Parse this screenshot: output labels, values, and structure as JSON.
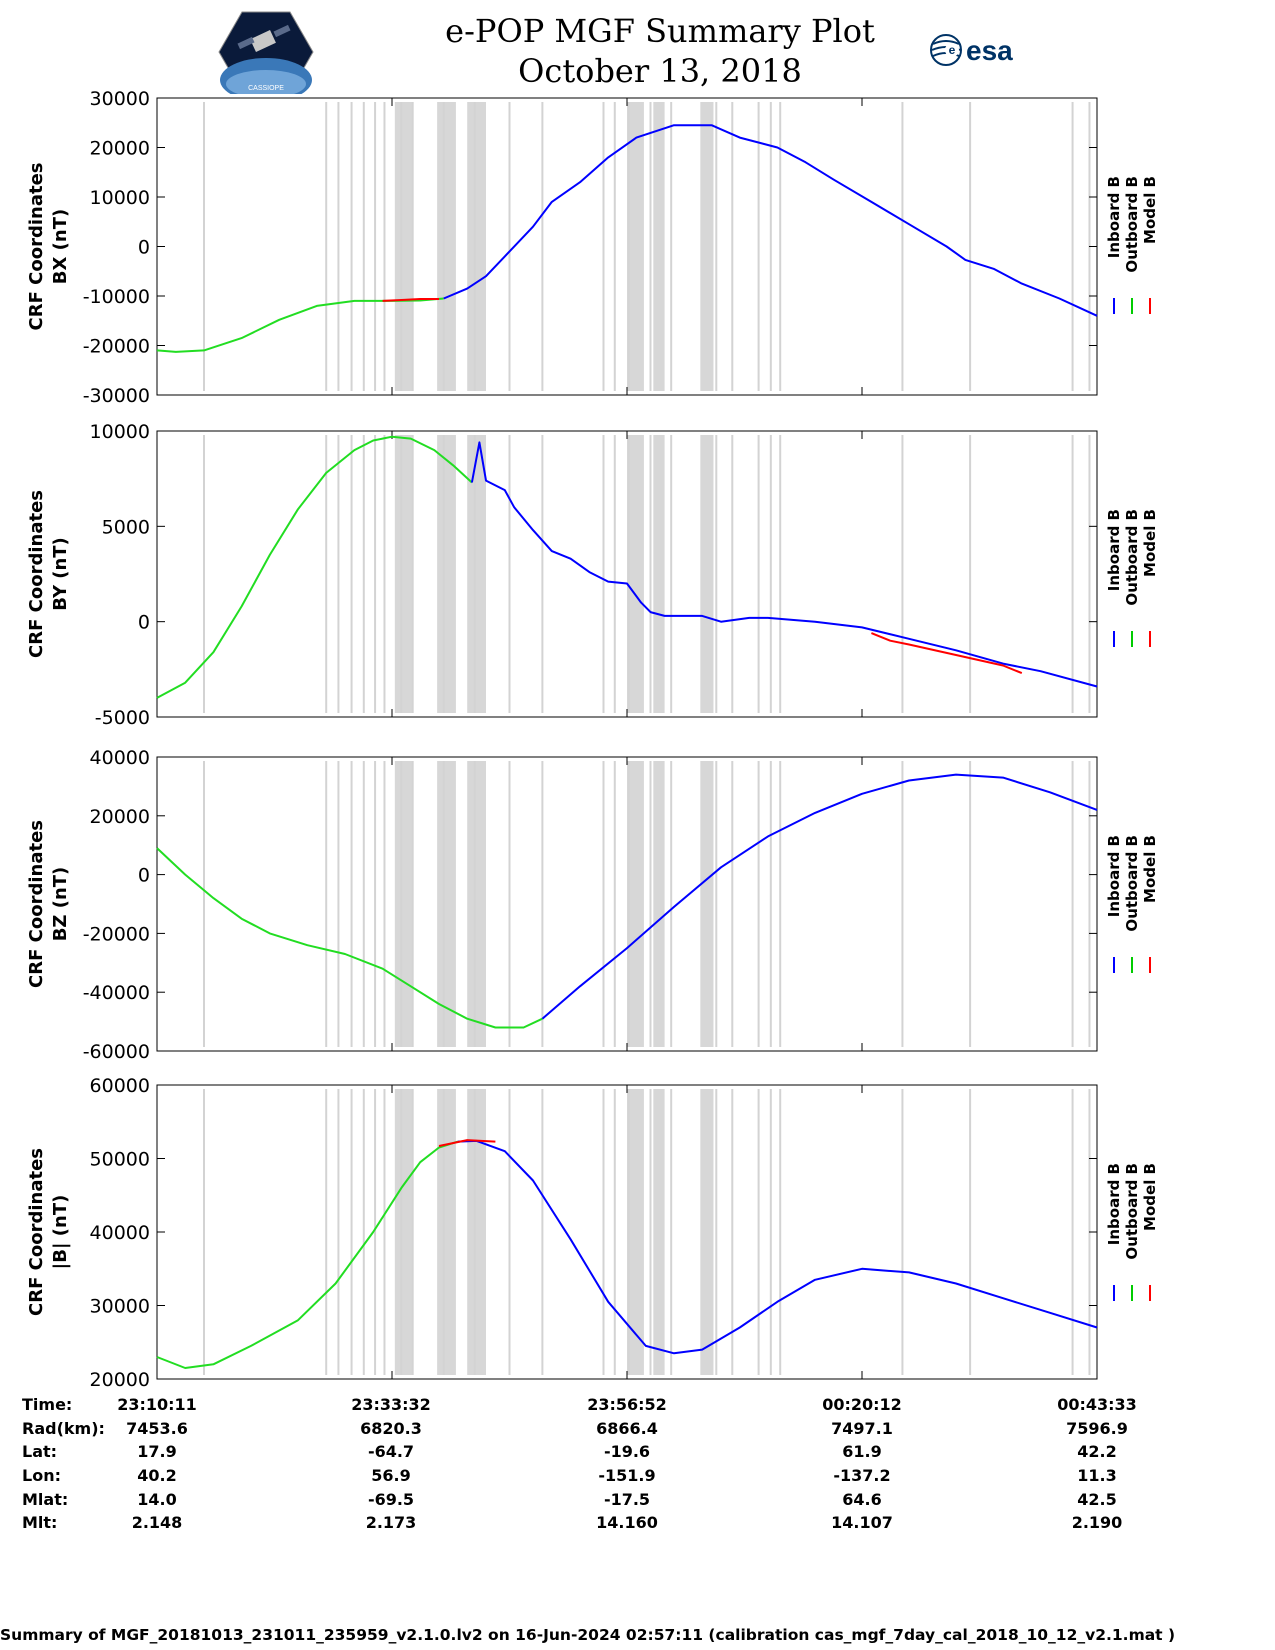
{
  "header": {
    "title": "e-POP MGF Summary Plot",
    "date": "October 13, 2018",
    "cassiope_logo_text": "CASSIOPE",
    "esa_logo_text": "esa"
  },
  "legend": {
    "labels": [
      "Inboard B",
      "Outboard B",
      "Model B"
    ],
    "colors": [
      "#0000ff",
      "#00cc00",
      "#ff0000"
    ]
  },
  "colors": {
    "inboard": "#0000ff",
    "outboard": "#22dd22",
    "model": "#ff0000",
    "gap": "#d3d3d3"
  },
  "chart_data": [
    {
      "type": "line",
      "ylabel": [
        "CRF Coordinates",
        "BX (nT)"
      ],
      "ylim": [
        -30000,
        30000
      ],
      "yticks": [
        30000,
        20000,
        10000,
        0,
        -10000,
        -20000,
        -30000
      ],
      "xlim": [
        0,
        100
      ],
      "outboard": {
        "x": [
          0,
          2,
          5,
          9,
          13,
          17,
          21,
          25,
          28,
          30.5
        ],
        "y": [
          -21000,
          -21300,
          -21000,
          -18500,
          -14800,
          -12000,
          -11000,
          -11000,
          -10900,
          -10500
        ]
      },
      "inboard": {
        "x": [
          30.5,
          33,
          35,
          37,
          40,
          42,
          45,
          48,
          51,
          55,
          59,
          62,
          66,
          69,
          72,
          76,
          80,
          84,
          86,
          89,
          92,
          96,
          100
        ],
        "y": [
          -10500,
          -8500,
          -6000,
          -2000,
          4000,
          9000,
          13000,
          18000,
          22000,
          24500,
          24500,
          22000,
          20000,
          17000,
          13500,
          9000,
          4500,
          0,
          -2700,
          -4500,
          -7500,
          -10500,
          -14000
        ]
      },
      "model": {
        "x": [
          24,
          26,
          28,
          30
        ],
        "y": [
          -11000,
          -10800,
          -10600,
          -10600
        ]
      }
    },
    {
      "type": "line",
      "ylabel": [
        "CRF Coordinates",
        "BY (nT)"
      ],
      "ylim": [
        -5000,
        10000
      ],
      "yticks": [
        10000,
        5000,
        0,
        -5000
      ],
      "xlim": [
        0,
        100
      ],
      "outboard": {
        "x": [
          0,
          3,
          6,
          9,
          12,
          15,
          18,
          21,
          23,
          25,
          27,
          29.5,
          31.5,
          33.5
        ],
        "y": [
          -4000,
          -3200,
          -1600,
          800,
          3500,
          5900,
          7800,
          9000,
          9500,
          9700,
          9600,
          9000,
          8200,
          7300
        ]
      },
      "inboard": {
        "x": [
          33.5,
          34.3,
          35,
          37,
          38,
          40,
          42,
          44,
          46,
          48,
          50,
          51.5,
          52.5,
          54,
          56,
          58,
          60,
          63,
          65,
          70,
          75,
          80,
          85,
          90,
          94,
          100
        ],
        "y": [
          7300,
          9400,
          7400,
          6900,
          6000,
          4800,
          3700,
          3300,
          2600,
          2100,
          2000,
          1000,
          500,
          300,
          300,
          300,
          0,
          200,
          200,
          0,
          -300,
          -900,
          -1500,
          -2200,
          -2600,
          -3400
        ]
      },
      "model": {
        "x": [
          76,
          78,
          80,
          90,
          92
        ],
        "y": [
          -600,
          -1000,
          -1200,
          -2300,
          -2700
        ]
      }
    },
    {
      "type": "line",
      "ylabel": [
        "CRF Coordinates",
        "BZ (nT)"
      ],
      "ylim": [
        -60000,
        40000
      ],
      "yticks": [
        40000,
        20000,
        0,
        -20000,
        -40000,
        -60000
      ],
      "xlim": [
        0,
        100
      ],
      "outboard": {
        "x": [
          0,
          3,
          6,
          9,
          12,
          16,
          20,
          24,
          27,
          30,
          33,
          36,
          39,
          41
        ],
        "y": [
          9000,
          0,
          -8000,
          -15000,
          -20000,
          -24000,
          -27000,
          -32000,
          -38000,
          -44000,
          -49000,
          -52000,
          -52000,
          -49000
        ]
      },
      "inboard": {
        "x": [
          41,
          45,
          50,
          55,
          60,
          65,
          70,
          75,
          80,
          85,
          90,
          95,
          100
        ],
        "y": [
          -49000,
          -38000,
          -25000,
          -11000,
          2500,
          13000,
          21000,
          27500,
          32000,
          34000,
          33000,
          28000,
          22000
        ]
      },
      "model": {
        "x": [],
        "y": []
      }
    },
    {
      "type": "line",
      "ylabel": [
        "CRF Coordinates",
        "|B| (nT)"
      ],
      "ylim": [
        20000,
        60000
      ],
      "yticks": [
        60000,
        50000,
        40000,
        30000,
        20000
      ],
      "xlim": [
        0,
        100
      ],
      "outboard": {
        "x": [
          0,
          3,
          6,
          10,
          15,
          19,
          23,
          26,
          28,
          30,
          32
        ],
        "y": [
          23000,
          21500,
          22000,
          24500,
          28000,
          33000,
          40000,
          46000,
          49500,
          51500,
          52300
        ]
      },
      "inboard": {
        "x": [
          32,
          34,
          37,
          40,
          44,
          48,
          52,
          55,
          58,
          62,
          66,
          70,
          75,
          80,
          85,
          90,
          95,
          100
        ],
        "y": [
          52300,
          52400,
          51000,
          47000,
          39000,
          30500,
          24500,
          23500,
          24000,
          27000,
          30500,
          33500,
          35000,
          34500,
          33000,
          31000,
          29000,
          27000
        ]
      },
      "model": {
        "x": [
          30,
          33,
          36
        ],
        "y": [
          51700,
          52500,
          52300
        ]
      }
    }
  ],
  "data_gaps": [
    5,
    18,
    19.3,
    20.7,
    22,
    23.2,
    24.2,
    26,
    27.2,
    30.5,
    33.8,
    37.5,
    41,
    47.5,
    48.7,
    50.2,
    52.5,
    54.7,
    59.5,
    61.2,
    64,
    65.3,
    66.3,
    79.3,
    86.5,
    97.4,
    99.2
  ],
  "gap_bands": [
    [
      25.3,
      27.2
    ],
    [
      29.8,
      31.8
    ],
    [
      33.0,
      35.0
    ],
    [
      50.0,
      51.8
    ],
    [
      52.8,
      54.0
    ],
    [
      57.8,
      59.2
    ]
  ],
  "ephemeris": {
    "row_labels": [
      "Time:",
      "Rad(km):",
      "Lat:",
      "Lon:",
      "Mlat:",
      "Mlt:"
    ],
    "columns": [
      [
        "23:10:11",
        "7453.6",
        "17.9",
        "40.2",
        "14.0",
        "2.148"
      ],
      [
        "23:33:32",
        "6820.3",
        "-64.7",
        "56.9",
        "-69.5",
        "2.173"
      ],
      [
        "23:56:52",
        "6866.4",
        "-19.6",
        "-151.9",
        "-17.5",
        "14.160"
      ],
      [
        "00:20:12",
        "7497.1",
        "61.9",
        "-137.2",
        "64.6",
        "14.107"
      ],
      [
        "00:43:33",
        "7596.9",
        "42.2",
        "11.3",
        "42.5",
        "2.190"
      ]
    ]
  },
  "footer": "Summary of MGF_20181013_231011_235959_v2.1.0.lv2 on 16-Jun-2024 02:57:11 (calibration cas_mgf_7day_cal_2018_10_12_v2.1.mat )"
}
